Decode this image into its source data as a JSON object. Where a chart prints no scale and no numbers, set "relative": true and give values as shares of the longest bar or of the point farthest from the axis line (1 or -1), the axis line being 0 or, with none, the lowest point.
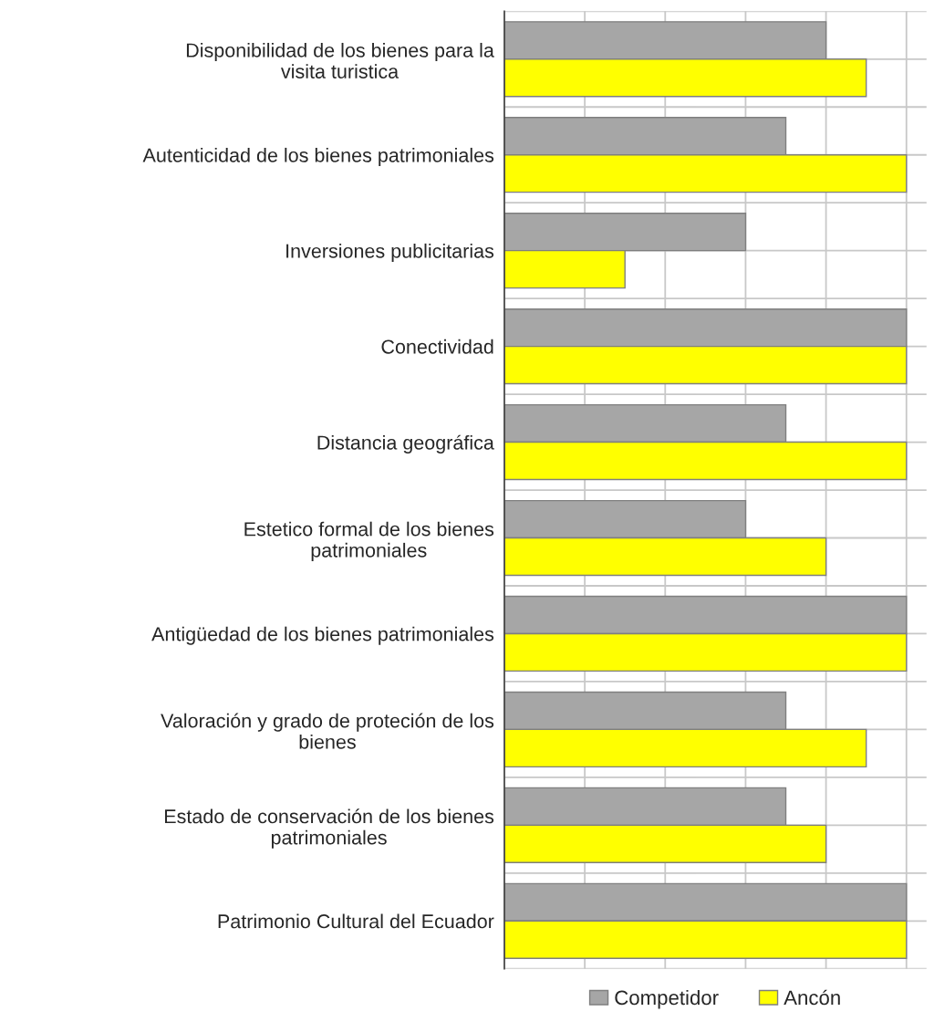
{
  "chart_data": {
    "type": "bar",
    "orientation": "horizontal",
    "relative": true,
    "grid": true,
    "legend": "bottom",
    "categories": [
      "Disponibilidad de los bienes para la\nvisita turistica",
      "Autenticidad de los bienes patrimoniales",
      "Inversiones publicitarias",
      "Conectividad",
      "Distancia geográfica",
      "Estetico formal de los bienes\npatrimoniales",
      "Antigüedad de los bienes patrimoniales",
      "Valoración y grado de proteción de los\nbienes",
      "Estado de conservación de los bienes\npatrimoniales",
      "Patrimonio Cultural del Ecuador"
    ],
    "series": [
      {
        "name": "Competidor",
        "color": "#a6a6a6",
        "values": [
          0.8,
          0.7,
          0.6,
          1,
          0.7,
          0.6,
          1,
          0.7,
          0.7,
          1
        ]
      },
      {
        "name": "Ancón",
        "color": "#ffff00",
        "values": [
          0.9,
          1,
          0.3,
          1,
          1,
          0.8,
          1,
          0.9,
          0.8,
          1
        ]
      }
    ]
  }
}
